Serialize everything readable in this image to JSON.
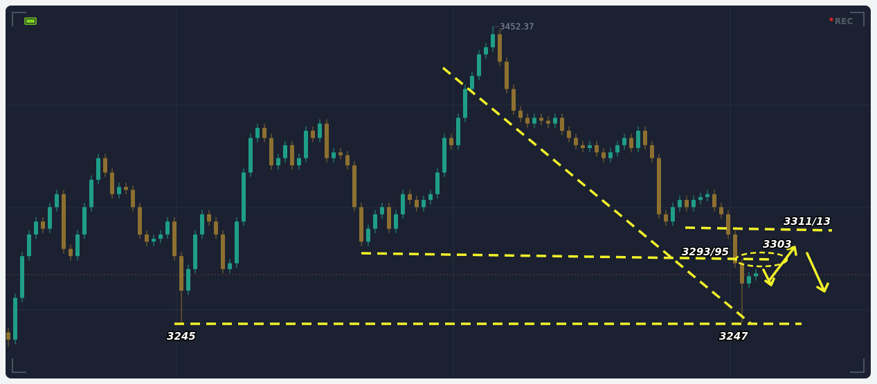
{
  "chart_data": {
    "type": "candlestick",
    "ylim": [
      3209,
      3466
    ],
    "up_color": "#1f9e88",
    "down_color": "#8d7030",
    "open": [
      3240,
      3235,
      3264,
      3293,
      3308,
      3317,
      3312,
      3327,
      3336,
      3298,
      3293,
      3308,
      3327,
      3346,
      3361,
      3351,
      3336,
      3341,
      3339,
      3327,
      3308,
      3303,
      3305,
      3308,
      3317,
      3293,
      3269,
      3284,
      3308,
      3322,
      3317,
      3308,
      3284,
      3288,
      3317,
      3351,
      3375,
      3382,
      3375,
      3356,
      3361,
      3370,
      3356,
      3361,
      3380,
      3375,
      3385,
      3361,
      3365,
      3363,
      3356,
      3327,
      3303,
      3312,
      3322,
      3327,
      3312,
      3322,
      3336,
      3332,
      3327,
      3332,
      3336,
      3351,
      3375,
      3370,
      3389,
      3409,
      3418,
      3433,
      3438,
      3447,
      3428,
      3409,
      3394,
      3389,
      3385,
      3389,
      3387,
      3385,
      3389,
      3380,
      3375,
      3370,
      3368,
      3370,
      3365,
      3361,
      3365,
      3370,
      3375,
      3368,
      3380,
      3370,
      3361,
      3322,
      3317,
      3327,
      3332,
      3327,
      3332,
      3334,
      3336,
      3327,
      3322,
      3308,
      3288,
      3274,
      3279
    ],
    "high": [
      3243,
      3267,
      3296,
      3311,
      3320,
      3320,
      3330,
      3339,
      3339,
      3301,
      3311,
      3330,
      3349,
      3364,
      3364,
      3354,
      3344,
      3344,
      3342,
      3330,
      3311,
      3308,
      3311,
      3320,
      3320,
      3296,
      3287,
      3311,
      3325,
      3325,
      3320,
      3311,
      3291,
      3320,
      3354,
      3378,
      3385,
      3385,
      3378,
      3364,
      3373,
      3373,
      3364,
      3383,
      3383,
      3388,
      3388,
      3368,
      3368,
      3366,
      3359,
      3330,
      3315,
      3325,
      3330,
      3330,
      3325,
      3339,
      3339,
      3335,
      3335,
      3339,
      3354,
      3378,
      3378,
      3392,
      3412,
      3421,
      3436,
      3441,
      3452.37,
      3450,
      3431,
      3412,
      3397,
      3392,
      3392,
      3392,
      3390,
      3392,
      3392,
      3383,
      3378,
      3373,
      3373,
      3373,
      3368,
      3368,
      3373,
      3378,
      3378,
      3383,
      3383,
      3373,
      3364,
      3325,
      3330,
      3335,
      3335,
      3335,
      3337,
      3339,
      3339,
      3330,
      3325,
      3311,
      3291,
      3282,
      3284
    ],
    "low": [
      3230,
      3232,
      3261,
      3290,
      3305,
      3309,
      3309,
      3324,
      3295,
      3290,
      3290,
      3305,
      3324,
      3343,
      3348,
      3333,
      3333,
      3336,
      3324,
      3305,
      3300,
      3300,
      3302,
      3305,
      3290,
      3245,
      3266,
      3281,
      3305,
      3314,
      3305,
      3281,
      3281,
      3285,
      3314,
      3348,
      3372,
      3372,
      3353,
      3353,
      3358,
      3353,
      3353,
      3358,
      3372,
      3372,
      3358,
      3358,
      3360,
      3353,
      3324,
      3300,
      3300,
      3309,
      3319,
      3309,
      3309,
      3319,
      3329,
      3324,
      3324,
      3329,
      3333,
      3348,
      3367,
      3367,
      3386,
      3406,
      3415,
      3430,
      3435,
      3425,
      3406,
      3391,
      3386,
      3382,
      3382,
      3384,
      3382,
      3382,
      3377,
      3372,
      3367,
      3365,
      3365,
      3362,
      3358,
      3358,
      3362,
      3367,
      3365,
      3365,
      3367,
      3358,
      3319,
      3314,
      3314,
      3324,
      3324,
      3324,
      3329,
      3331,
      3324,
      3319,
      3305,
      3285,
      3247,
      3271,
      3276
    ],
    "close": [
      3235,
      3264,
      3293,
      3308,
      3317,
      3312,
      3327,
      3336,
      3298,
      3293,
      3308,
      3327,
      3346,
      3361,
      3351,
      3336,
      3341,
      3339,
      3327,
      3308,
      3303,
      3305,
      3308,
      3317,
      3293,
      3269,
      3284,
      3308,
      3322,
      3317,
      3308,
      3284,
      3288,
      3317,
      3351,
      3375,
      3382,
      3375,
      3356,
      3361,
      3370,
      3356,
      3361,
      3380,
      3375,
      3385,
      3361,
      3365,
      3363,
      3356,
      3327,
      3303,
      3312,
      3322,
      3327,
      3312,
      3322,
      3336,
      3332,
      3327,
      3332,
      3336,
      3351,
      3375,
      3370,
      3389,
      3409,
      3418,
      3433,
      3438,
      3447,
      3428,
      3409,
      3394,
      3389,
      3385,
      3389,
      3387,
      3385,
      3389,
      3380,
      3375,
      3370,
      3368,
      3370,
      3365,
      3361,
      3365,
      3370,
      3375,
      3368,
      3380,
      3370,
      3361,
      3322,
      3317,
      3327,
      3332,
      3327,
      3332,
      3334,
      3336,
      3327,
      3322,
      3308,
      3288,
      3274,
      3279,
      3281
    ],
    "high_label": "3452.37",
    "annotations": [
      "3245",
      "3247",
      "3293/95",
      "3303",
      "3311/13"
    ],
    "status": "REC"
  }
}
